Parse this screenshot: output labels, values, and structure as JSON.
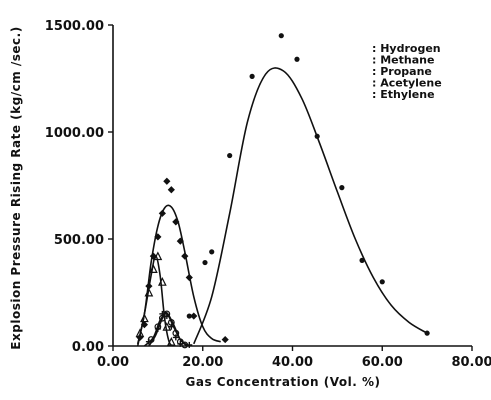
{
  "chart_data": {
    "type": "scatter",
    "xlabel": "Gas Concentration (Vol. %)",
    "ylabel": "Explosion Pressure Rising Rate (kg/cm /sec.)",
    "xlim": [
      0,
      80
    ],
    "ylim": [
      0,
      1500
    ],
    "xticks": [
      "0.00",
      "20.00",
      "40.00",
      "60.00",
      "80.00"
    ],
    "yticks": [
      "0.00",
      "500.00",
      "1000.00",
      "1500.00"
    ],
    "grid": false,
    "legend_position": "top-right",
    "series": [
      {
        "name": "Hydrogen",
        "marker": "circle-filled",
        "points": [
          [
            17,
            140
          ],
          [
            20.5,
            390
          ],
          [
            22,
            440
          ],
          [
            26,
            890
          ],
          [
            31,
            1260
          ],
          [
            37.5,
            1450
          ],
          [
            41,
            1340
          ],
          [
            45.5,
            980
          ],
          [
            51,
            740
          ],
          [
            55.5,
            400
          ],
          [
            60,
            300
          ],
          [
            70,
            60
          ]
        ],
        "curve": [
          [
            18,
            10
          ],
          [
            22,
            230
          ],
          [
            26,
            620
          ],
          [
            30,
            1050
          ],
          [
            34,
            1270
          ],
          [
            38,
            1285
          ],
          [
            42,
            1160
          ],
          [
            46,
            950
          ],
          [
            50,
            720
          ],
          [
            54,
            500
          ],
          [
            58,
            320
          ],
          [
            62,
            190
          ],
          [
            66,
            110
          ],
          [
            70,
            60
          ]
        ]
      },
      {
        "name": "Methane",
        "marker": "diamond-filled",
        "points": [
          [
            6,
            40
          ],
          [
            7,
            100
          ],
          [
            8,
            280
          ],
          [
            9,
            420
          ],
          [
            10,
            510
          ],
          [
            11,
            620
          ],
          [
            12,
            770
          ],
          [
            13,
            730
          ],
          [
            14,
            580
          ],
          [
            15,
            490
          ],
          [
            16,
            420
          ],
          [
            17,
            320
          ],
          [
            18,
            140
          ],
          [
            25,
            30
          ]
        ],
        "curve": [
          [
            5.5,
            10
          ],
          [
            7,
            150
          ],
          [
            8.5,
            390
          ],
          [
            10,
            560
          ],
          [
            11.5,
            645
          ],
          [
            13,
            650
          ],
          [
            14.5,
            580
          ],
          [
            16,
            440
          ],
          [
            18,
            230
          ],
          [
            20,
            90
          ],
          [
            22,
            35
          ],
          [
            24,
            20
          ]
        ]
      },
      {
        "name": "Propane",
        "marker": "open-triangle",
        "points": [
          [
            6,
            60
          ],
          [
            7,
            130
          ],
          [
            8,
            250
          ],
          [
            9,
            360
          ],
          [
            10,
            420
          ],
          [
            11,
            300
          ],
          [
            12,
            90
          ],
          [
            13,
            20
          ]
        ],
        "curve": [
          [
            5.5,
            0
          ],
          [
            7,
            150
          ],
          [
            8.5,
            330
          ],
          [
            9.5,
            420
          ],
          [
            10.5,
            330
          ],
          [
            11.5,
            130
          ],
          [
            12.5,
            20
          ],
          [
            13.5,
            0
          ]
        ]
      },
      {
        "name": "Acetylene",
        "marker": "plus",
        "points": [
          [
            8,
            20
          ],
          [
            10,
            80
          ],
          [
            11,
            150
          ],
          [
            12,
            140
          ],
          [
            13,
            90
          ],
          [
            14,
            40
          ],
          [
            15,
            10
          ],
          [
            17,
            5
          ]
        ],
        "curve": [
          [
            7,
            0
          ],
          [
            9,
            40
          ],
          [
            10.5,
            120
          ],
          [
            12,
            150
          ],
          [
            13.5,
            90
          ],
          [
            15,
            30
          ],
          [
            16.5,
            5
          ]
        ]
      },
      {
        "name": "Ethylene",
        "marker": "open-circle",
        "points": [
          [
            8.5,
            30
          ],
          [
            10,
            90
          ],
          [
            11,
            130
          ],
          [
            12,
            150
          ],
          [
            13,
            110
          ],
          [
            14,
            60
          ],
          [
            15,
            20
          ],
          [
            16,
            5
          ]
        ],
        "curve": [
          [
            8,
            0
          ],
          [
            9.5,
            50
          ],
          [
            11,
            130
          ],
          [
            12,
            155
          ],
          [
            13.5,
            100
          ],
          [
            15,
            30
          ],
          [
            16.5,
            0
          ]
        ]
      }
    ]
  }
}
